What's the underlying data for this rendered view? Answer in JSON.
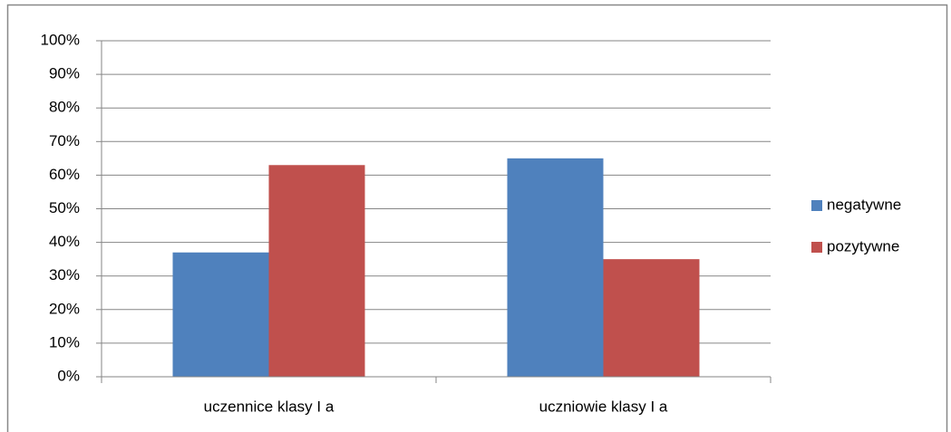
{
  "chart_data": {
    "type": "bar",
    "categories": [
      "uczennice klasy I a",
      "uczniowie klasy I a"
    ],
    "series": [
      {
        "name": "negatywne",
        "color": "#4f81bd",
        "values": [
          37,
          65
        ]
      },
      {
        "name": "pozytywne",
        "color": "#c0504d",
        "values": [
          63,
          35
        ]
      }
    ],
    "ylim": [
      0,
      100
    ],
    "yticks": [
      {
        "value": 0,
        "label": "0%"
      },
      {
        "value": 10,
        "label": "10%"
      },
      {
        "value": 20,
        "label": "20%"
      },
      {
        "value": 30,
        "label": "30%"
      },
      {
        "value": 40,
        "label": "40%"
      },
      {
        "value": 50,
        "label": "50%"
      },
      {
        "value": 60,
        "label": "60%"
      },
      {
        "value": 70,
        "label": "70%"
      },
      {
        "value": 80,
        "label": "80%"
      },
      {
        "value": 90,
        "label": "90%"
      },
      {
        "value": 100,
        "label": "100%"
      }
    ],
    "grid": true,
    "legend": "right"
  }
}
